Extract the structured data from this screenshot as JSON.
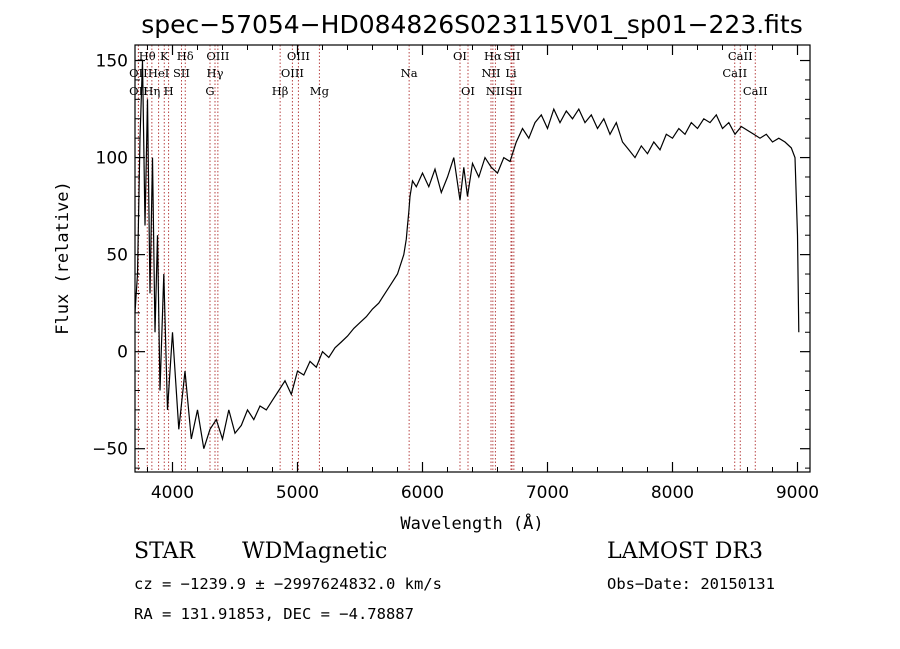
{
  "chart_data": {
    "type": "line",
    "title": "spec−57054−HD084826S023115V01_sp01−223.fits",
    "xlabel": "Wavelength (Å)",
    "ylabel": "Flux (relative)",
    "xlim": [
      3700,
      9100
    ],
    "ylim": [
      -62,
      158
    ],
    "xticks": [
      4000,
      5000,
      6000,
      7000,
      8000,
      9000
    ],
    "yticks": [
      -50,
      0,
      50,
      100,
      150
    ],
    "grid": false,
    "legend": "none",
    "colors": {
      "spectrum": "#000000",
      "line_markers": "#b03030"
    },
    "series": [
      {
        "x": [
          3700,
          3720,
          3740,
          3760,
          3780,
          3800,
          3820,
          3840,
          3860,
          3880,
          3900,
          3930,
          3960,
          4000,
          4050,
          4100,
          4150,
          4200,
          4250,
          4300,
          4350,
          4400,
          4450,
          4500,
          4550,
          4600,
          4650,
          4700,
          4750,
          4800,
          4850,
          4900,
          4950,
          5000,
          5050,
          5100,
          5150,
          5200,
          5250,
          5300,
          5350,
          5400,
          5450,
          5500,
          5550,
          5600,
          5650,
          5700,
          5750,
          5800,
          5850,
          5870,
          5880,
          5890,
          5900,
          5920,
          5950,
          6000,
          6050,
          6100,
          6150,
          6200,
          6250,
          6300,
          6330,
          6360,
          6400,
          6450,
          6500,
          6550,
          6600,
          6650,
          6700,
          6750,
          6800,
          6850,
          6900,
          6950,
          7000,
          7050,
          7100,
          7150,
          7200,
          7250,
          7300,
          7350,
          7400,
          7450,
          7500,
          7550,
          7600,
          7650,
          7700,
          7750,
          7800,
          7850,
          7900,
          7950,
          8000,
          8050,
          8100,
          8150,
          8200,
          8250,
          8300,
          8350,
          8400,
          8450,
          8500,
          8550,
          8600,
          8650,
          8700,
          8750,
          8800,
          8850,
          8900,
          8950,
          8980,
          9000,
          9010
        ],
        "y": [
          20,
          40,
          110,
          150,
          65,
          130,
          30,
          100,
          10,
          60,
          -20,
          40,
          -30,
          10,
          -40,
          -10,
          -45,
          -30,
          -50,
          -40,
          -35,
          -45,
          -30,
          -42,
          -38,
          -30,
          -35,
          -28,
          -30,
          -25,
          -20,
          -15,
          -22,
          -10,
          -12,
          -5,
          -8,
          0,
          -3,
          2,
          5,
          8,
          12,
          15,
          18,
          22,
          25,
          30,
          35,
          40,
          50,
          58,
          65,
          72,
          80,
          88,
          85,
          92,
          85,
          94,
          82,
          90,
          100,
          78,
          95,
          80,
          97,
          90,
          100,
          95,
          92,
          100,
          98,
          108,
          115,
          110,
          118,
          122,
          115,
          125,
          118,
          124,
          120,
          125,
          118,
          122,
          115,
          120,
          112,
          118,
          108,
          104,
          100,
          106,
          102,
          108,
          104,
          112,
          110,
          115,
          112,
          118,
          115,
          120,
          118,
          122,
          115,
          118,
          112,
          116,
          114,
          112,
          110,
          112,
          108,
          110,
          108,
          105,
          100,
          60,
          10
        ]
      }
    ],
    "spectral_lines": [
      {
        "label": "OII",
        "wavelength": 3727,
        "row": 2
      },
      {
        "label": "OII",
        "wavelength": 3727,
        "row": 3
      },
      {
        "label": "Hθ",
        "wavelength": 3798,
        "row": 1
      },
      {
        "label": "Hη",
        "wavelength": 3835,
        "row": 3
      },
      {
        "label": "HeI",
        "wavelength": 3889,
        "row": 2
      },
      {
        "label": "K",
        "wavelength": 3934,
        "row": 1
      },
      {
        "label": "H",
        "wavelength": 3969,
        "row": 3
      },
      {
        "label": "SII",
        "wavelength": 4072,
        "row": 2
      },
      {
        "label": "Hδ",
        "wavelength": 4102,
        "row": 1
      },
      {
        "label": "G",
        "wavelength": 4300,
        "row": 3
      },
      {
        "label": "Hγ",
        "wavelength": 4340,
        "row": 2
      },
      {
        "label": "OIII",
        "wavelength": 4363,
        "row": 1
      },
      {
        "label": "Hβ",
        "wavelength": 4861,
        "row": 3
      },
      {
        "label": "OIII",
        "wavelength": 4959,
        "row": 2
      },
      {
        "label": "OIII",
        "wavelength": 5007,
        "row": 1
      },
      {
        "label": "Mg",
        "wavelength": 5175,
        "row": 3
      },
      {
        "label": "Na",
        "wavelength": 5893,
        "row": 2
      },
      {
        "label": "OI",
        "wavelength": 6300,
        "row": 1
      },
      {
        "label": "OI",
        "wavelength": 6364,
        "row": 3
      },
      {
        "label": "NII",
        "wavelength": 6548,
        "row": 2
      },
      {
        "label": "Hα",
        "wavelength": 6563,
        "row": 1
      },
      {
        "label": "NII",
        "wavelength": 6583,
        "row": 3
      },
      {
        "label": "Li",
        "wavelength": 6708,
        "row": 2
      },
      {
        "label": "SII",
        "wavelength": 6716,
        "row": 1
      },
      {
        "label": "SII",
        "wavelength": 6731,
        "row": 3
      },
      {
        "label": "CaII",
        "wavelength": 8498,
        "row": 2
      },
      {
        "label": "CaII",
        "wavelength": 8542,
        "row": 1
      },
      {
        "label": "CaII",
        "wavelength": 8662,
        "row": 3
      }
    ]
  },
  "info": {
    "object_class": "STAR",
    "subclass": "WDMagnetic",
    "survey": "LAMOST DR3",
    "cz": "cz = −1239.9 ± −2997624832.0 km/s",
    "obs_date": "Obs−Date: 20150131",
    "radec": "RA = 131.91853, DEC =  −4.78887"
  }
}
